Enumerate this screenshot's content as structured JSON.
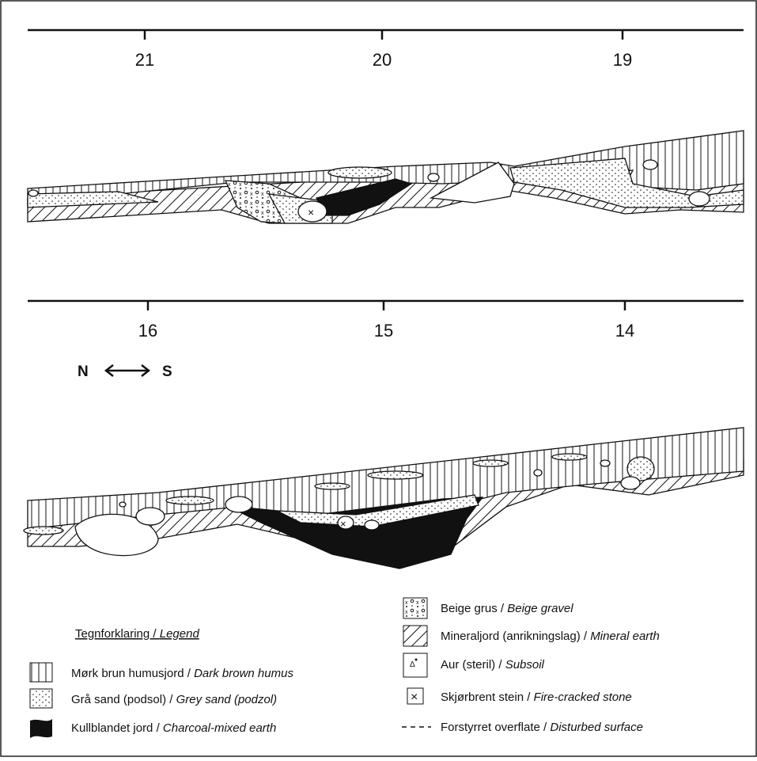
{
  "profiles": [
    {
      "ticks": [
        "21",
        "20",
        "19"
      ]
    },
    {
      "ticks": [
        "16",
        "15",
        "14"
      ]
    }
  ],
  "orientation": {
    "left": "N",
    "right": "S"
  },
  "legend": {
    "title": "Tegnforklaring /",
    "title_en": "Legend",
    "items": [
      {
        "label": "Mørk brun humusjord /",
        "label_en": "Dark brown humus"
      },
      {
        "label": "Grå sand (podsol) /",
        "label_en": "Grey sand (podzol)"
      },
      {
        "label": "Kullblandet  jord /",
        "label_en": "Charcoal-mixed earth"
      },
      {
        "label": "Beige grus /",
        "label_en": "Beige gravel"
      },
      {
        "label": "Mineraljord (anrikningslag) /",
        "label_en": "Mineral earth"
      },
      {
        "label": "Aur (steril) /",
        "label_en": "Subsoil"
      },
      {
        "label": "Skjørbrent stein /",
        "label_en": "Fire-cracked stone"
      },
      {
        "label": "Forstyrret overflate /",
        "label_en": "Disturbed surface"
      }
    ]
  }
}
